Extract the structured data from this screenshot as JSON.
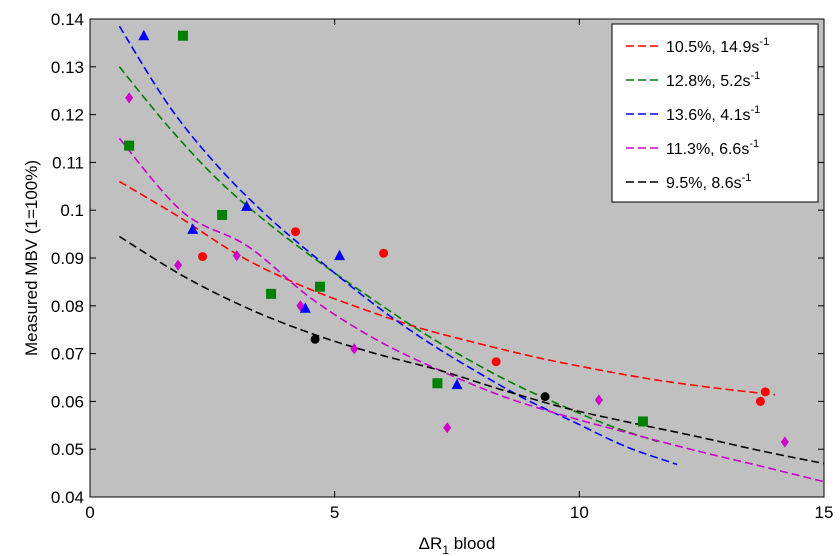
{
  "chart_data": {
    "type": "scatter",
    "title": "",
    "xlabel": "ΔR",
    "xlabel_sub": "1",
    "xlabel_suffix": " blood",
    "ylabel": "Measured MBV (1=100%)",
    "xlim": [
      0,
      15
    ],
    "ylim": [
      0.04,
      0.14
    ],
    "x_ticks": [
      0,
      5,
      10,
      15
    ],
    "x_tick_labels": [
      "0",
      "5",
      "10",
      "15"
    ],
    "y_ticks": [
      0.04,
      0.05,
      0.06,
      0.07,
      0.08,
      0.09,
      0.1,
      0.11,
      0.12,
      0.13,
      0.14
    ],
    "y_tick_labels": [
      "0.04",
      "0.05",
      "0.06",
      "0.07",
      "0.08",
      "0.09",
      "0.1",
      "0.11",
      "0.12",
      "0.13",
      "0.14"
    ],
    "grid": false,
    "background": "#c0c0c0",
    "legend_position": "top-right",
    "series": [
      {
        "legend_label": "10.5%, 14.9s",
        "legend_sup": "-1",
        "color": "#ff0000",
        "marker": "circle",
        "points": [
          [
            2.3,
            0.0903
          ],
          [
            4.2,
            0.0955
          ],
          [
            6.0,
            0.091
          ],
          [
            8.3,
            0.0683
          ],
          [
            13.7,
            0.06
          ],
          [
            13.8,
            0.062
          ]
        ],
        "fit": {
          "x_start": 0.6,
          "x_end": 14.0,
          "y": [
            0.106,
            0.0986,
            0.0906,
            0.0845,
            0.0797,
            0.0755,
            0.0722,
            0.0692,
            0.0667,
            0.0645,
            0.0628,
            0.0614
          ]
        }
      },
      {
        "legend_label": "12.8%, 5.2s",
        "legend_sup": "-1",
        "color": "#008000",
        "marker": "square",
        "points": [
          [
            0.8,
            0.1135
          ],
          [
            1.9,
            0.1365
          ],
          [
            2.7,
            0.099
          ],
          [
            3.7,
            0.0825
          ],
          [
            4.7,
            0.084
          ],
          [
            7.1,
            0.0638
          ],
          [
            11.3,
            0.0558
          ]
        ],
        "fit": {
          "x_start": 0.6,
          "x_end": 11.6,
          "y": [
            0.13,
            0.1175,
            0.1065,
            0.0976,
            0.0898,
            0.0826,
            0.0757,
            0.0695,
            0.064,
            0.0593,
            0.055,
            0.0516
          ]
        }
      },
      {
        "legend_label": "13.6%, 4.1s",
        "legend_sup": "-1",
        "color": "#0000ff",
        "marker": "triangle",
        "points": [
          [
            1.1,
            0.1365
          ],
          [
            2.1,
            0.096
          ],
          [
            3.2,
            0.1008
          ],
          [
            4.4,
            0.0795
          ],
          [
            5.1,
            0.0905
          ],
          [
            7.5,
            0.0635
          ]
        ],
        "fit": {
          "x_start": 0.6,
          "x_end": 12.0,
          "y": [
            0.1385,
            0.1215,
            0.1085,
            0.098,
            0.089,
            0.0805,
            0.073,
            0.0665,
            0.0605,
            0.0555,
            0.0505,
            0.0468
          ]
        }
      },
      {
        "legend_label": "11.3%, 6.6s",
        "legend_sup": "-1",
        "color": "#cc00cc",
        "marker": "diamond",
        "points": [
          [
            0.8,
            0.1235
          ],
          [
            1.8,
            0.0885
          ],
          [
            3.0,
            0.0905
          ],
          [
            4.3,
            0.08
          ],
          [
            5.4,
            0.071
          ],
          [
            7.3,
            0.0545
          ],
          [
            10.4,
            0.0603
          ],
          [
            14.2,
            0.0515
          ]
        ],
        "fit": {
          "x_start": 0.6,
          "x_end": 15.0,
          "y": [
            0.115,
            0.0995,
            0.0925,
            0.0815,
            0.073,
            0.0665,
            0.061,
            0.0568,
            0.0532,
            0.0497,
            0.0465,
            0.0432
          ]
        }
      },
      {
        "legend_label": "9.5%, 8.6s",
        "legend_sup": "-1",
        "color": "#000000",
        "marker": "circle",
        "points": [
          [
            4.6,
            0.073
          ],
          [
            9.3,
            0.061
          ]
        ],
        "fit": {
          "x_start": 0.6,
          "x_end": 15.0,
          "y": [
            0.0945,
            0.0862,
            0.0795,
            0.0742,
            0.07,
            0.0665,
            0.0623,
            0.0585,
            0.0555,
            0.0527,
            0.0497,
            0.047
          ]
        }
      }
    ]
  }
}
